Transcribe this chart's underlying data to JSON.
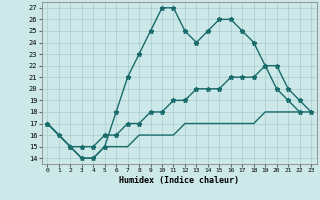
{
  "xlabel": "Humidex (Indice chaleur)",
  "bg_color": "#cce8e8",
  "grid_color": "#aacccc",
  "line_color": "#1a6b6b",
  "xlim": [
    -0.5,
    23.5
  ],
  "ylim": [
    13.5,
    27.5
  ],
  "xticks": [
    0,
    1,
    2,
    3,
    4,
    5,
    6,
    7,
    8,
    9,
    10,
    11,
    12,
    13,
    14,
    15,
    16,
    17,
    18,
    19,
    20,
    21,
    22,
    23
  ],
  "yticks": [
    14,
    15,
    16,
    17,
    18,
    19,
    20,
    21,
    22,
    23,
    24,
    25,
    26,
    27
  ],
  "line1_x": [
    0,
    1,
    2,
    3,
    4,
    5,
    6,
    7,
    8,
    9,
    10,
    11,
    12,
    13,
    14,
    15,
    16,
    17,
    18,
    19,
    20,
    21,
    22
  ],
  "line1_y": [
    17,
    16,
    15,
    14,
    14,
    15,
    18,
    21,
    23,
    25,
    27,
    27,
    25,
    24,
    25,
    26,
    26,
    25,
    24,
    22,
    20,
    19,
    18
  ],
  "line2_x": [
    0,
    2,
    3,
    4,
    5,
    6,
    7,
    8,
    9,
    10,
    11,
    12,
    13,
    14,
    15,
    16,
    17,
    18,
    19,
    20,
    21,
    22,
    23
  ],
  "line2_y": [
    17,
    15,
    15,
    15,
    16,
    16,
    17,
    17,
    18,
    18,
    19,
    19,
    20,
    20,
    20,
    21,
    21,
    21,
    22,
    22,
    20,
    19,
    18
  ],
  "line3_x": [
    0,
    2,
    3,
    4,
    5,
    6,
    7,
    8,
    9,
    10,
    11,
    12,
    13,
    14,
    15,
    16,
    17,
    18,
    19,
    20,
    21,
    22,
    23
  ],
  "line3_y": [
    17,
    15,
    14,
    14,
    15,
    15,
    15,
    16,
    16,
    16,
    16,
    17,
    17,
    17,
    17,
    17,
    17,
    17,
    18,
    18,
    18,
    18,
    18
  ]
}
